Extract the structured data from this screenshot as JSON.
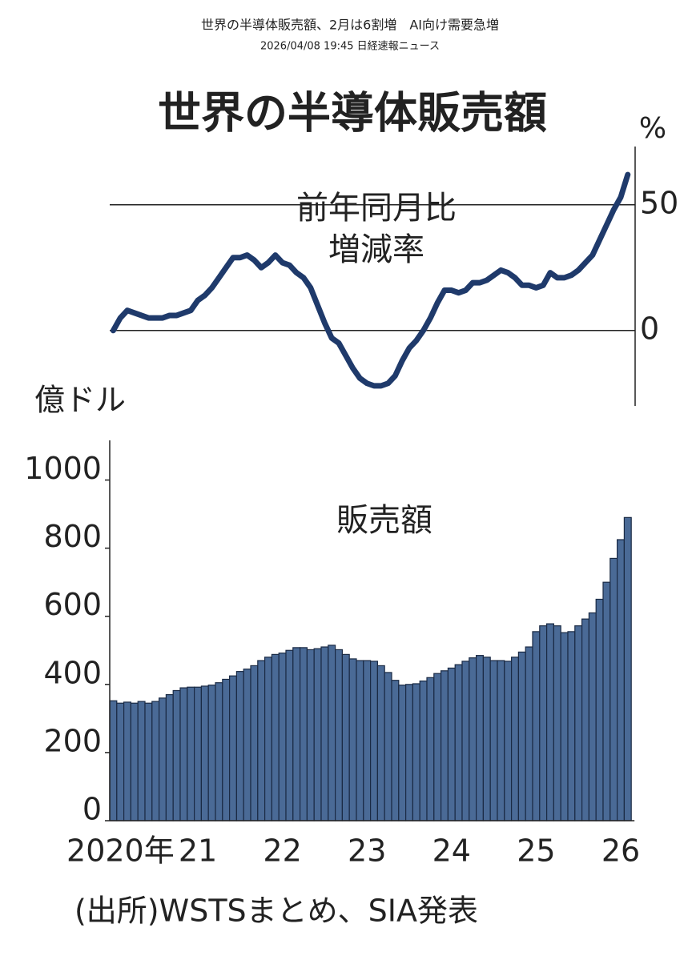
{
  "header": {
    "title": "世界の半導体販売額、2月は6割増　AI向け需要急増",
    "subtitle": "2026/04/08 19:45 日経速報ニュース"
  },
  "chart_data": [
    {
      "type": "line",
      "title": "世界の半導体販売額",
      "series_label": "前年同月比\n増減率",
      "y2_label": "%",
      "color": "#1f3a6b",
      "values": [
        0,
        5,
        8,
        7,
        6,
        5,
        5,
        5,
        6,
        6,
        7,
        8,
        12,
        14,
        17,
        21,
        25,
        29,
        29,
        30,
        28,
        25,
        27,
        30,
        27,
        26,
        23,
        21,
        17,
        10,
        3,
        -3,
        -5,
        -10,
        -15,
        -19,
        -21,
        -22,
        -22,
        -21,
        -18,
        -12,
        -7,
        -4,
        0,
        5,
        11,
        16,
        16,
        15,
        16,
        19,
        19,
        20,
        22,
        24,
        23,
        21,
        18,
        18,
        17,
        18,
        23,
        21,
        21,
        22,
        24,
        27,
        30,
        36,
        42,
        48,
        53,
        62
      ],
      "ylim": [
        -30,
        70
      ],
      "yticks": [
        0,
        50
      ]
    },
    {
      "type": "bar",
      "series_label": "販売額",
      "y_label": "億ドル",
      "note": "(出所)WSTSまとめ、SIA発表",
      "color": "#4a6a96",
      "categories": [
        "2020年",
        null,
        null,
        null,
        null,
        null,
        null,
        null,
        null,
        null,
        null,
        null,
        "21",
        null,
        null,
        null,
        null,
        null,
        null,
        null,
        null,
        null,
        null,
        null,
        "22",
        null,
        null,
        null,
        null,
        null,
        null,
        null,
        null,
        null,
        null,
        null,
        "23",
        null,
        null,
        null,
        null,
        null,
        null,
        null,
        null,
        null,
        null,
        null,
        "24",
        null,
        null,
        null,
        null,
        null,
        null,
        null,
        null,
        null,
        null,
        null,
        "25",
        null,
        null,
        null,
        null,
        null,
        null,
        null,
        null,
        null,
        null,
        null,
        "26",
        null
      ],
      "values": [
        352,
        345,
        348,
        345,
        350,
        345,
        350,
        360,
        370,
        382,
        390,
        392,
        392,
        395,
        398,
        405,
        415,
        425,
        438,
        445,
        455,
        470,
        480,
        488,
        492,
        500,
        508,
        508,
        502,
        505,
        510,
        515,
        502,
        488,
        475,
        470,
        470,
        468,
        455,
        435,
        412,
        398,
        400,
        402,
        410,
        420,
        432,
        440,
        448,
        458,
        468,
        478,
        485,
        480,
        470,
        470,
        468,
        480,
        495,
        510,
        555,
        572,
        578,
        572,
        552,
        555,
        572,
        592,
        610,
        650,
        700,
        770,
        825,
        890
      ],
      "ylim": [
        0,
        1100
      ],
      "yticks": [
        0,
        200,
        400,
        600,
        800,
        1000
      ]
    }
  ]
}
